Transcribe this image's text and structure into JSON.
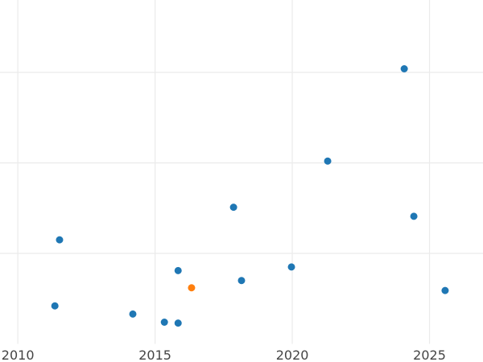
{
  "chart_data": {
    "type": "scatter",
    "title": "",
    "xlabel": "",
    "ylabel": "",
    "xlim": [
      2009.35,
      2026.95
    ],
    "ylim": [
      0,
      3.8
    ],
    "x_ticks": [
      "2010",
      "2015",
      "2020",
      "2025"
    ],
    "y_ticks_labeled": false,
    "grid": true,
    "colors": {
      "default": "#1f77b4",
      "highlight": "#ff7f0e",
      "grid": "#ebebeb"
    },
    "points": [
      {
        "x": 2024.08,
        "y": 3.04,
        "highlight": false
      },
      {
        "x": 2021.29,
        "y": 2.02,
        "highlight": false
      },
      {
        "x": 2017.86,
        "y": 1.51,
        "highlight": false
      },
      {
        "x": 2024.43,
        "y": 1.41,
        "highlight": false
      },
      {
        "x": 2011.52,
        "y": 1.15,
        "highlight": false
      },
      {
        "x": 2015.84,
        "y": 0.81,
        "highlight": false
      },
      {
        "x": 2019.97,
        "y": 0.85,
        "highlight": false
      },
      {
        "x": 2018.15,
        "y": 0.7,
        "highlight": false
      },
      {
        "x": 2016.33,
        "y": 0.62,
        "highlight": true
      },
      {
        "x": 2025.57,
        "y": 0.59,
        "highlight": false
      },
      {
        "x": 2011.35,
        "y": 0.42,
        "highlight": false
      },
      {
        "x": 2014.19,
        "y": 0.33,
        "highlight": false
      },
      {
        "x": 2015.34,
        "y": 0.24,
        "highlight": false
      },
      {
        "x": 2015.84,
        "y": 0.23,
        "highlight": false
      }
    ]
  }
}
